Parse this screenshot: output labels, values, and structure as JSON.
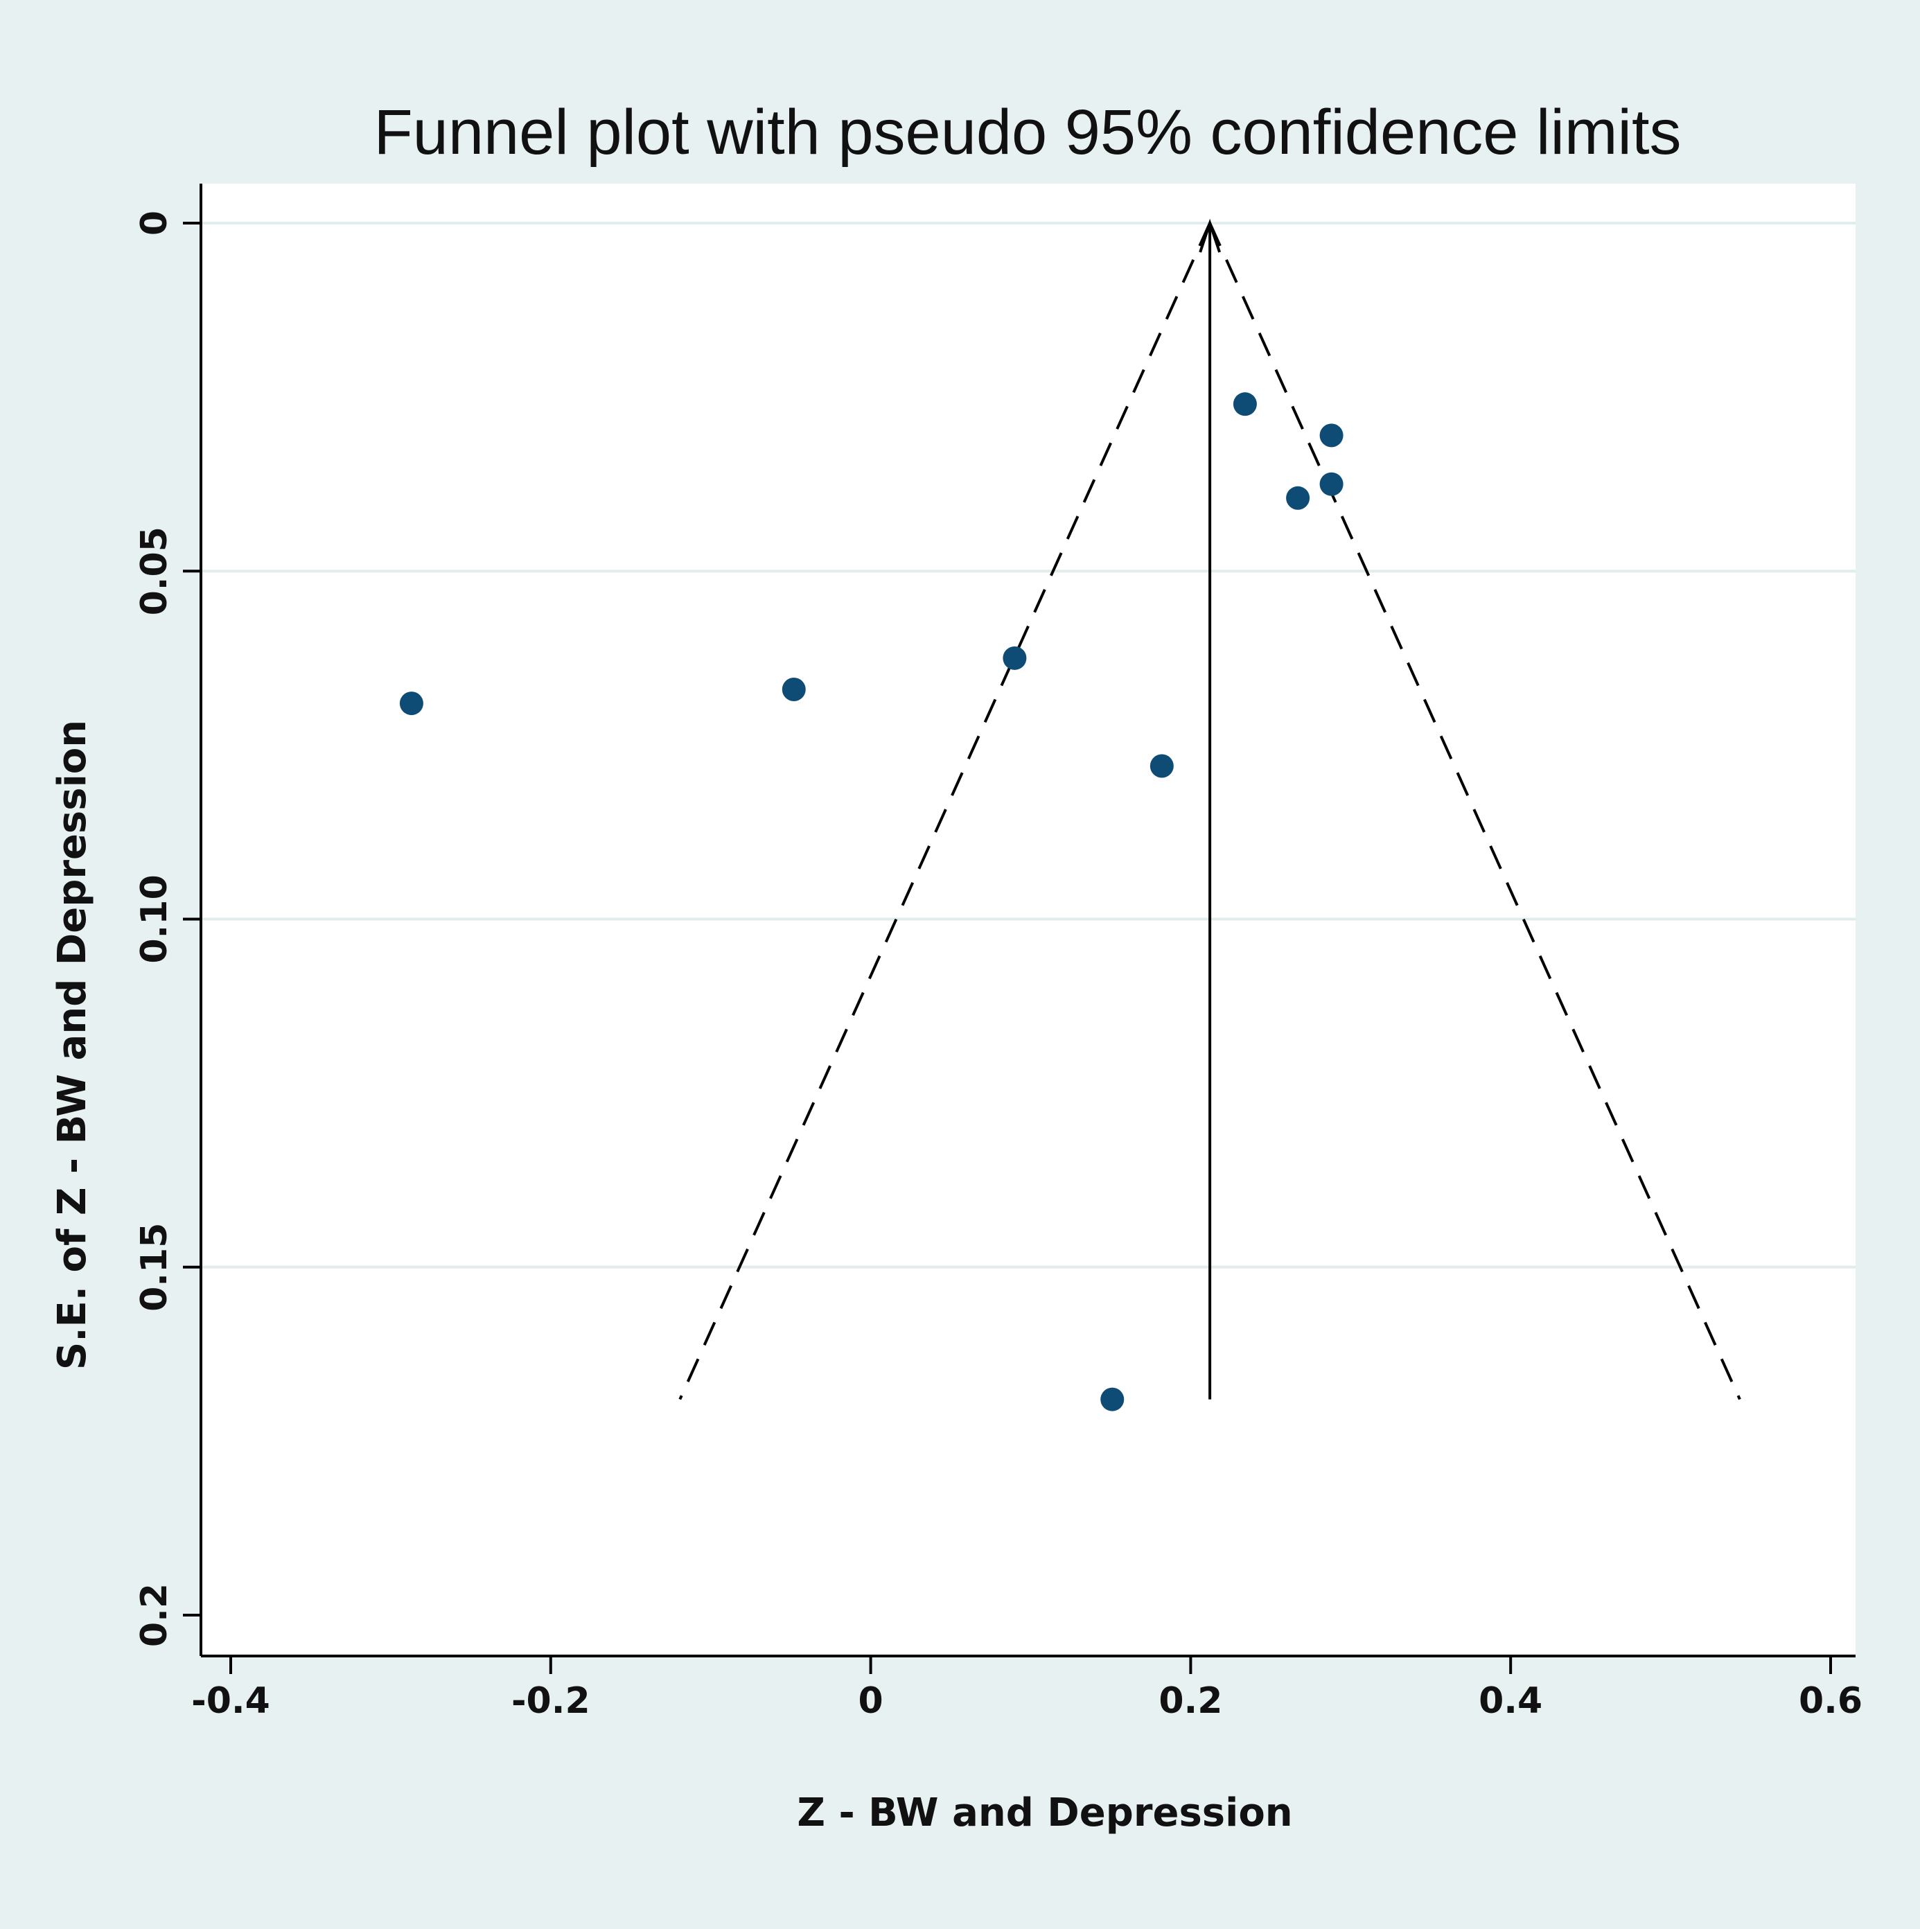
{
  "colors": {
    "outer_background": "#e8f1f2",
    "plot_background": "#ffffff",
    "gridline": "#e1eced",
    "marker": "#0f4c75",
    "line": "#000000"
  },
  "chart_data": {
    "type": "scatter",
    "title": "Funnel plot with pseudo 95% confidence limits",
    "xlabel": "Z - BW and Depression",
    "ylabel": "S.E. of Z - BW and Depression",
    "xlim": [
      -0.42,
      0.62
    ],
    "ylim": [
      0,
      0.206
    ],
    "y_reversed": true,
    "grid": "horizontal",
    "xticks": [
      {
        "value": -0.4,
        "label": "-0.4"
      },
      {
        "value": -0.2,
        "label": "-0.2"
      },
      {
        "value": 0,
        "label": "0"
      },
      {
        "value": 0.2,
        "label": "0.2"
      },
      {
        "value": 0.4,
        "label": "0.4"
      },
      {
        "value": 0.6,
        "label": "0.6"
      }
    ],
    "yticks": [
      {
        "value": 0,
        "label": "0"
      },
      {
        "value": 0.05,
        "label": "0.05"
      },
      {
        "value": 0.1,
        "label": "0.10"
      },
      {
        "value": 0.15,
        "label": "0.15"
      },
      {
        "value": 0.2,
        "label": "0.2"
      }
    ],
    "pooled_effect": 0.212,
    "funnel_se_max": 0.169,
    "points": [
      {
        "x": 0.234,
        "y": 0.026
      },
      {
        "x": 0.288,
        "y": 0.0305
      },
      {
        "x": 0.288,
        "y": 0.0375
      },
      {
        "x": 0.267,
        "y": 0.0395
      },
      {
        "x": 0.09,
        "y": 0.0625
      },
      {
        "x": -0.048,
        "y": 0.067
      },
      {
        "x": -0.287,
        "y": 0.069
      },
      {
        "x": 0.182,
        "y": 0.078
      },
      {
        "x": 0.151,
        "y": 0.169
      }
    ]
  }
}
